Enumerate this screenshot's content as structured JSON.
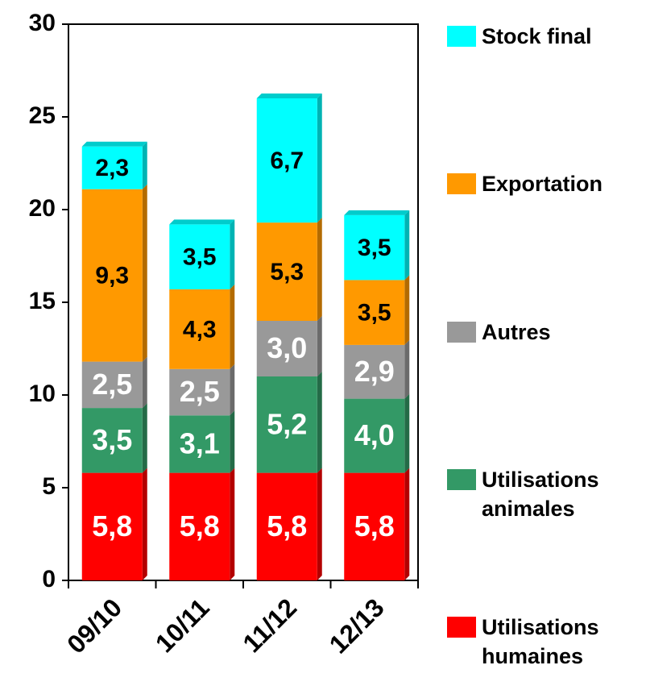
{
  "chart_data": {
    "type": "stacked_bar",
    "categories": [
      "09/10",
      "10/11",
      "11/12",
      "12/13"
    ],
    "ylim": [
      0,
      30
    ],
    "yticks": [
      0,
      5,
      10,
      15,
      20,
      25,
      30
    ],
    "series": [
      {
        "name": "Utilisations humaines",
        "color": "#ff0000",
        "label_color": "#ffffff",
        "values": [
          5.8,
          5.8,
          5.8,
          5.8
        ],
        "value_labels": [
          "5,8",
          "5,8",
          "5,8",
          "5,8"
        ]
      },
      {
        "name": "Utilisations animales",
        "color": "#339966",
        "label_color": "#ffffff",
        "values": [
          3.5,
          3.1,
          5.2,
          4.0
        ],
        "value_labels": [
          "3,5",
          "3,1",
          "5,2",
          "4,0"
        ]
      },
      {
        "name": "Autres",
        "color": "#999999",
        "label_color": "#ffffff",
        "values": [
          2.5,
          2.5,
          3.0,
          2.9
        ],
        "value_labels": [
          "2,5",
          "2,5",
          "3,0",
          "2,9"
        ]
      },
      {
        "name": "Exportation",
        "color": "#ff9900",
        "label_color": "#000000",
        "values": [
          9.3,
          4.3,
          5.3,
          3.5
        ],
        "value_labels": [
          "9,3",
          "4,3",
          "5,3",
          "3,5"
        ]
      },
      {
        "name": "Stock final",
        "color": "#00ffff",
        "label_color": "#000000",
        "values": [
          2.3,
          3.5,
          6.7,
          3.5
        ],
        "value_labels": [
          "2,3",
          "3,5",
          "6,7",
          "3,5"
        ]
      }
    ]
  }
}
